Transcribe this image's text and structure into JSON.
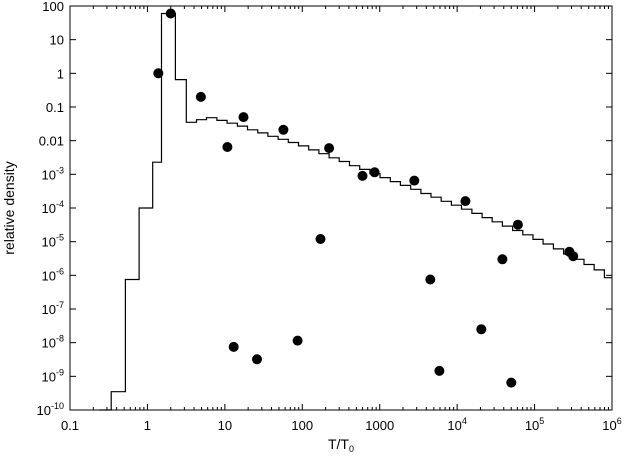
{
  "chart_data": {
    "type": "scatter",
    "xlabel": "T/T",
    "xlabel_sub": "0",
    "ylabel": "relative density",
    "x_scale": "log",
    "y_scale": "log",
    "xlim": [
      0.1,
      1000000
    ],
    "ylim": [
      1e-10,
      100
    ],
    "grid": false,
    "x_ticks": [
      {
        "value": 0.1,
        "label": "0.1"
      },
      {
        "value": 1,
        "label": "1"
      },
      {
        "value": 10,
        "label": "10"
      },
      {
        "value": 100,
        "label": "100"
      },
      {
        "value": 1000,
        "label": "1000"
      },
      {
        "value": 10000,
        "label": "10",
        "exp": "4"
      },
      {
        "value": 100000,
        "label": "10",
        "exp": "5"
      },
      {
        "value": 1000000,
        "label": "10",
        "exp": "6"
      }
    ],
    "y_ticks": [
      {
        "value": 100,
        "label": "100"
      },
      {
        "value": 10,
        "label": "10"
      },
      {
        "value": 1,
        "label": "1"
      },
      {
        "value": 0.1,
        "label": "0.1"
      },
      {
        "value": 0.01,
        "label": "0.01"
      },
      {
        "value": 0.001,
        "label": "10",
        "exp": "-3"
      },
      {
        "value": 0.0001,
        "label": "10",
        "exp": "-4"
      },
      {
        "value": 1e-05,
        "label": "10",
        "exp": "-5"
      },
      {
        "value": 1e-06,
        "label": "10",
        "exp": "-6"
      },
      {
        "value": 1e-07,
        "label": "10",
        "exp": "-7"
      },
      {
        "value": 1e-08,
        "label": "10",
        "exp": "-8"
      },
      {
        "value": 1e-09,
        "label": "10",
        "exp": "-9"
      },
      {
        "value": 1e-10,
        "label": "10",
        "exp": "-10"
      }
    ],
    "series": [
      {
        "kind": "step",
        "color": "#000000",
        "edges": [
          0.24,
          0.34,
          0.52,
          0.78,
          1.17,
          1.52,
          2.3,
          3.18,
          4.3,
          5.8,
          7.9,
          10.7,
          14.5,
          19.6,
          26.6,
          36,
          48.7,
          66,
          89.4,
          121,
          164,
          222,
          300,
          407,
          551,
          746,
          1010,
          1370,
          1850,
          2510,
          3400,
          4600,
          6230,
          8440,
          11400,
          15500,
          21000,
          28400,
          38400,
          52000,
          70500,
          95400,
          129000,
          175000,
          237000,
          321000,
          435000,
          589000,
          797000,
          1000000
        ],
        "values": [
          3e-11,
          3.5e-10,
          7.5e-07,
          0.0001,
          0.0023,
          60,
          0.65,
          0.035,
          0.042,
          0.048,
          0.04,
          0.033,
          0.027,
          0.021,
          0.017,
          0.0135,
          0.011,
          0.0088,
          0.007,
          0.0053,
          0.0041,
          0.0031,
          0.0024,
          0.0018,
          0.0014,
          0.00105,
          0.0008,
          0.00061,
          0.00047,
          0.00036,
          0.00027,
          0.00021,
          0.000158,
          0.000121,
          9.2e-05,
          6.9e-05,
          5.2e-05,
          3.9e-05,
          2.9e-05,
          2.15e-05,
          1.6e-05,
          1.17e-05,
          8.5e-06,
          6.1e-06,
          4.3e-06,
          3e-06,
          2.1e-06,
          1.45e-06,
          8.5e-07
        ]
      },
      {
        "kind": "points",
        "color": "#000000",
        "points": [
          {
            "x": 1.38,
            "y": 1
          },
          {
            "x": 2.0,
            "y": 60
          },
          {
            "x": 4.9,
            "y": 0.2
          },
          {
            "x": 10.8,
            "y": 0.0065
          },
          {
            "x": 13.0,
            "y": 7.5e-09
          },
          {
            "x": 17.4,
            "y": 0.05
          },
          {
            "x": 26.0,
            "y": 3.2e-09
          },
          {
            "x": 57,
            "y": 0.021
          },
          {
            "x": 87,
            "y": 1.15e-08
          },
          {
            "x": 172,
            "y": 1.2e-05
          },
          {
            "x": 222,
            "y": 0.006
          },
          {
            "x": 600,
            "y": 0.0009
          },
          {
            "x": 860,
            "y": 0.00115
          },
          {
            "x": 2800,
            "y": 0.00065
          },
          {
            "x": 4500,
            "y": 7.5e-07
          },
          {
            "x": 5900,
            "y": 1.45e-09
          },
          {
            "x": 12800,
            "y": 0.00016
          },
          {
            "x": 20500,
            "y": 2.5e-08
          },
          {
            "x": 38400,
            "y": 3e-06
          },
          {
            "x": 50000,
            "y": 6.5e-10
          },
          {
            "x": 61000,
            "y": 3.2e-05
          },
          {
            "x": 282000,
            "y": 5e-06
          },
          {
            "x": 315000,
            "y": 3.7e-06
          }
        ]
      }
    ]
  }
}
